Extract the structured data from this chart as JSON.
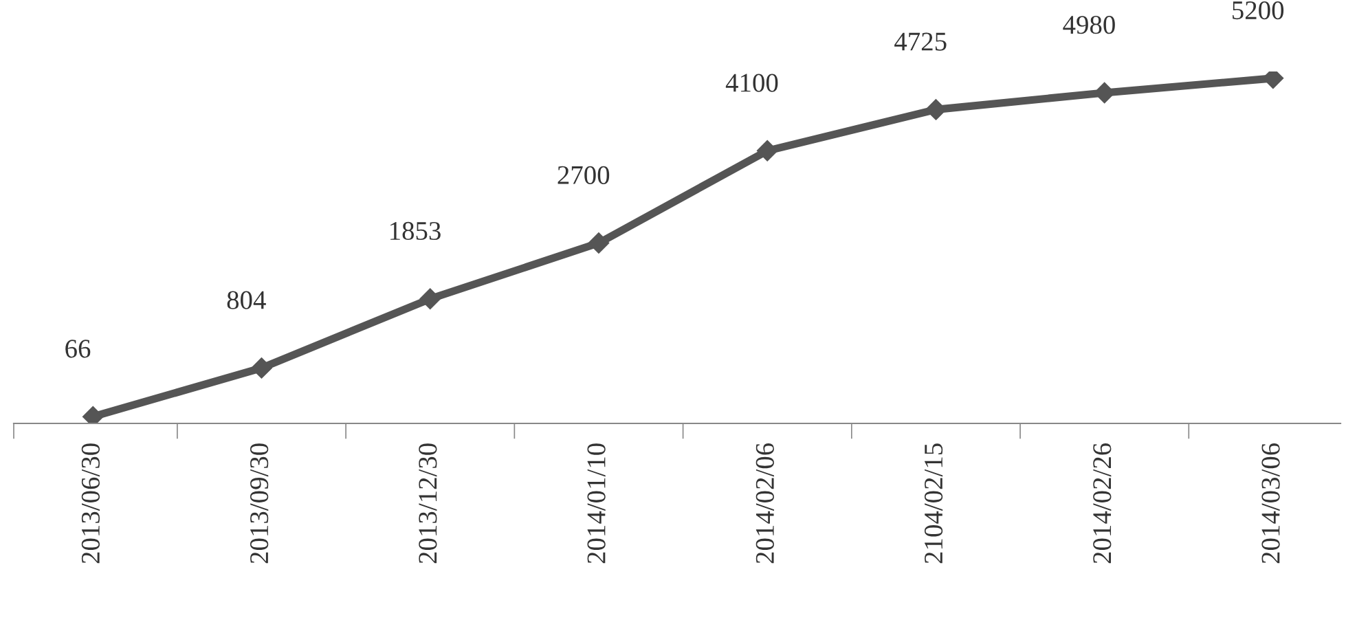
{
  "chart_data": {
    "type": "line",
    "categories": [
      "2013/06/30",
      "2013/09/30",
      "2013/12/30",
      "2014/01/10",
      "2014/02/06",
      "2104/02/15",
      "2014/02/26",
      "2014/03/06"
    ],
    "series": [
      {
        "color": "#555555",
        "values": [
          66,
          804,
          1853,
          2700,
          4100,
          4725,
          4980,
          5200
        ]
      }
    ],
    "tick_labels": "x",
    "data_labels": true,
    "marker": "diamond",
    "line_style": "solid",
    "grid": false,
    "legend": false
  }
}
